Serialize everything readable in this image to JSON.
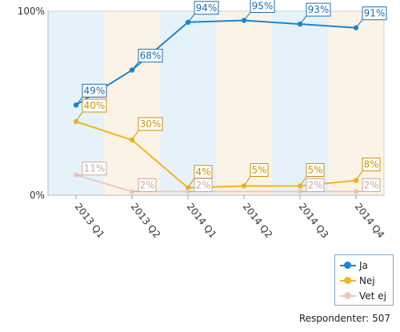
{
  "chart_data": {
    "type": "line",
    "categories": [
      "2013 Q1",
      "2013 Q2",
      "2014 Q1",
      "2014 Q2",
      "2014 Q3",
      "2014 Q4"
    ],
    "ylim": [
      0,
      100
    ],
    "y_ticks": [
      "0%",
      "100%"
    ],
    "series": [
      {
        "name": "Ja",
        "color": "#1a86d6",
        "label_color": "#1a6fb3",
        "values": [
          49,
          68,
          94,
          95,
          93,
          91
        ],
        "labels": [
          "49%",
          "68%",
          "94%",
          "95%",
          "93%",
          "91%"
        ]
      },
      {
        "name": "Nej",
        "color": "#f2b51c",
        "label_color": "#c8930b",
        "values": [
          40,
          30,
          4,
          5,
          5,
          8
        ],
        "labels": [
          "40%",
          "30%",
          "4%",
          "5%",
          "5%",
          "8%"
        ]
      },
      {
        "name": "Vet ej",
        "color": "#efc8c0",
        "label_color": "#c8aaa4",
        "values": [
          11,
          2,
          2,
          null,
          2,
          2
        ],
        "labels": [
          "11%",
          "2%",
          "2%",
          null,
          "2%",
          "2%"
        ]
      }
    ],
    "legend": "bottom-right",
    "band_colors": [
      "#e6f2f9",
      "#fbf3e6"
    ]
  },
  "footer": {
    "text": "Respondenter: 507"
  }
}
